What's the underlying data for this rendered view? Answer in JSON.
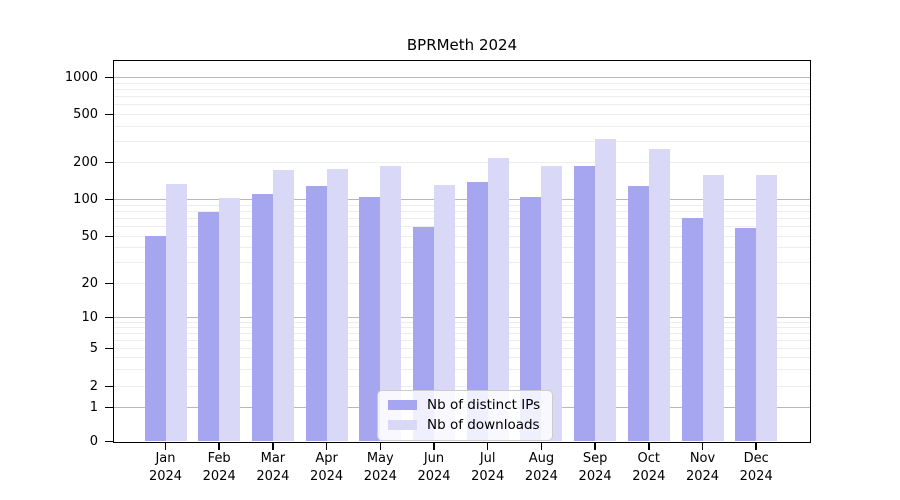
{
  "chart_data": {
    "type": "bar",
    "title": "BPRMeth 2024",
    "categories": [
      "Jan 2024",
      "Feb 2024",
      "Mar 2024",
      "Apr 2024",
      "May 2024",
      "Jun 2024",
      "Jul 2024",
      "Aug 2024",
      "Sep 2024",
      "Oct 2024",
      "Nov 2024",
      "Dec 2024"
    ],
    "series": [
      {
        "name": "Nb of distinct IPs",
        "color": "#a5a5f0",
        "values": [
          50,
          79,
          110,
          128,
          104,
          59,
          137,
          104,
          187,
          127,
          70,
          58
        ]
      },
      {
        "name": "Nb of downloads",
        "color": "#d9d9f7",
        "values": [
          133,
          101,
          172,
          176,
          186,
          130,
          214,
          186,
          310,
          256,
          157,
          157
        ]
      }
    ],
    "yticks": [
      1000,
      500,
      200,
      100,
      50,
      20,
      10,
      5,
      2,
      1,
      0
    ],
    "ylabel": "",
    "xlabel": "",
    "yscale": "symlog",
    "ylim": [
      0,
      1400
    ],
    "grid": true,
    "legend_position": "inside-bottom-center",
    "colors": {
      "axis": "#000000",
      "grid_major": "#b8b8b8",
      "grid_minor": "#ededed",
      "background": "#ffffff",
      "legend_border": "#cccccc"
    }
  }
}
